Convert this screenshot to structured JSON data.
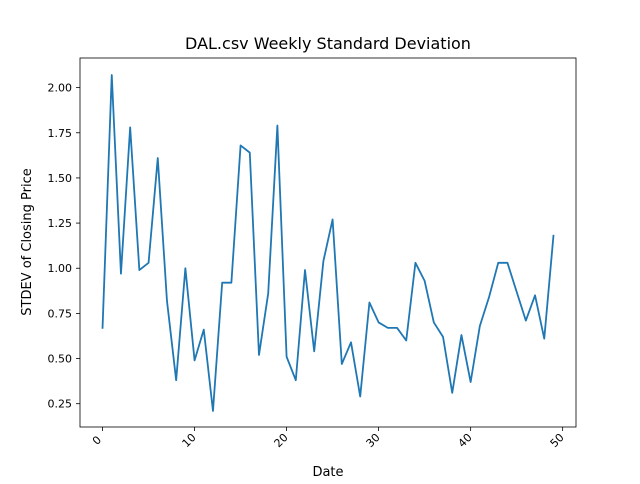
{
  "chart_data": {
    "type": "line",
    "title": "DAL.csv Weekly Standard Deviation",
    "xlabel": "Date",
    "ylabel": "STDEV of Closing Price",
    "xlim": [
      -2.45,
      51.45
    ],
    "ylim": [
      0.121,
      2.164
    ],
    "x_ticks": [
      0,
      10,
      20,
      30,
      40,
      50
    ],
    "y_ticks": [
      0.25,
      0.5,
      0.75,
      1.0,
      1.25,
      1.5,
      1.75,
      2.0
    ],
    "x_tick_labels": [
      "0",
      "10",
      "20",
      "30",
      "40",
      "50"
    ],
    "y_tick_labels": [
      "0.25",
      "0.50",
      "0.75",
      "1.00",
      "1.25",
      "1.50",
      "1.75",
      "2.00"
    ],
    "grid": false,
    "series": [
      {
        "color": "#1f77b4",
        "x": [
          0,
          1,
          2,
          3,
          4,
          5,
          6,
          7,
          8,
          9,
          10,
          11,
          12,
          13,
          14,
          15,
          16,
          17,
          18,
          19,
          20,
          21,
          22,
          23,
          24,
          25,
          26,
          27,
          28,
          29,
          30,
          31,
          32,
          33,
          34,
          35,
          36,
          37,
          38,
          39,
          40,
          41,
          42,
          43,
          44,
          45,
          46,
          47,
          48,
          49
        ],
        "values": [
          0.67,
          2.07,
          0.97,
          1.78,
          0.99,
          1.03,
          1.61,
          0.82,
          0.38,
          1.0,
          0.49,
          0.66,
          0.21,
          0.92,
          0.92,
          1.68,
          1.64,
          0.52,
          0.86,
          1.79,
          0.51,
          0.38,
          0.99,
          0.54,
          1.04,
          1.27,
          0.47,
          0.59,
          0.29,
          0.81,
          0.7,
          0.67,
          0.67,
          0.6,
          1.03,
          0.93,
          0.7,
          0.62,
          0.31,
          0.63,
          0.37,
          0.68,
          0.84,
          1.03,
          1.03,
          0.87,
          0.71,
          0.85,
          0.61,
          1.18
        ]
      }
    ]
  }
}
